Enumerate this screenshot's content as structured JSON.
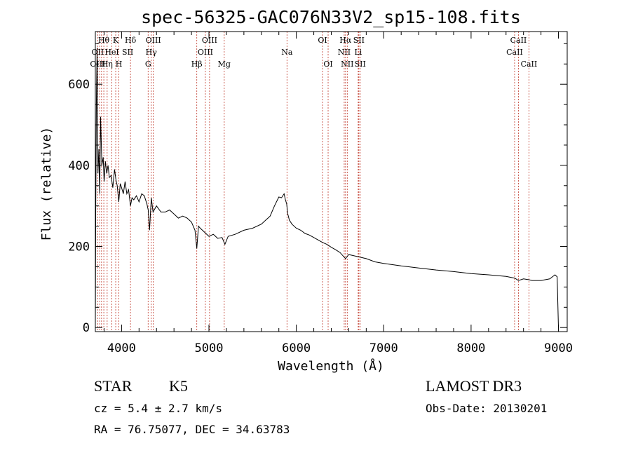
{
  "chart_data": {
    "type": "line",
    "title": "spec-56325-GAC076N33V2_sp15-108.fits",
    "xlabel": "Wavelength (Å)",
    "ylabel": "Flux (relative)",
    "xlim": [
      3700,
      9100
    ],
    "ylim": [
      -10,
      730
    ],
    "x_ticks": [
      4000,
      5000,
      6000,
      7000,
      8000,
      9000
    ],
    "y_ticks": [
      0,
      200,
      400,
      600
    ],
    "series": [
      {
        "name": "flux",
        "x": [
          3700,
          3705,
          3712,
          3720,
          3730,
          3740,
          3750,
          3760,
          3775,
          3790,
          3800,
          3815,
          3830,
          3845,
          3860,
          3880,
          3900,
          3920,
          3935,
          3950,
          3968,
          3985,
          4000,
          4020,
          4040,
          4060,
          4080,
          4102,
          4120,
          4140,
          4170,
          4200,
          4230,
          4260,
          4290,
          4305,
          4320,
          4340,
          4360,
          4400,
          4450,
          4500,
          4550,
          4600,
          4650,
          4700,
          4750,
          4800,
          4840,
          4861,
          4880,
          4900,
          4950,
          5000,
          5050,
          5100,
          5150,
          5183,
          5220,
          5300,
          5400,
          5500,
          5600,
          5700,
          5750,
          5800,
          5830,
          5860,
          5875,
          5890,
          5900,
          5920,
          5950,
          6000,
          6050,
          6100,
          6150,
          6200,
          6250,
          6300,
          6350,
          6400,
          6450,
          6500,
          6563,
          6600,
          6700,
          6800,
          6900,
          7000,
          7200,
          7400,
          7600,
          7800,
          8000,
          8200,
          8400,
          8500,
          8542,
          8600,
          8662,
          8700,
          8800,
          8900,
          8960,
          8985,
          9000
        ],
        "y": [
          10,
          300,
          560,
          690,
          380,
          440,
          330,
          520,
          400,
          420,
          360,
          410,
          380,
          400,
          370,
          375,
          345,
          390,
          365,
          350,
          310,
          355,
          345,
          330,
          360,
          330,
          340,
          300,
          320,
          315,
          325,
          310,
          330,
          325,
          305,
          290,
          240,
          320,
          285,
          300,
          285,
          285,
          290,
          280,
          270,
          275,
          270,
          260,
          240,
          195,
          250,
          245,
          235,
          225,
          230,
          220,
          222,
          205,
          225,
          230,
          240,
          245,
          255,
          275,
          300,
          322,
          320,
          330,
          315,
          305,
          282,
          265,
          255,
          245,
          240,
          232,
          228,
          222,
          216,
          210,
          205,
          198,
          192,
          185,
          170,
          180,
          175,
          170,
          162,
          158,
          152,
          147,
          142,
          138,
          133,
          130,
          126,
          122,
          116,
          120,
          118,
          116,
          116,
          120,
          130,
          125,
          0
        ],
        "color": "#000000"
      }
    ],
    "line_groups": [
      {
        "ids": [
          3727,
          3750,
          3771,
          3797,
          3835,
          3889,
          3933,
          3969,
          4102,
          4304,
          4340,
          4363,
          4861,
          4959,
          5007,
          5175,
          5893,
          6300,
          6364,
          6548,
          6563,
          6583,
          6708,
          6716,
          6731,
          8498,
          8542,
          8662
        ]
      }
    ],
    "line_labels": [
      {
        "text": "Hθ",
        "x": 3797,
        "row": 1
      },
      {
        "text": "K",
        "x": 3933,
        "row": 1
      },
      {
        "text": "Hδ",
        "x": 4102,
        "row": 1
      },
      {
        "text": "OIII",
        "x": 4363,
        "row": 1
      },
      {
        "text": "OIII",
        "x": 5007,
        "row": 1
      },
      {
        "text": "OI",
        "x": 6300,
        "row": 1
      },
      {
        "text": "Hα",
        "x": 6563,
        "row": 1
      },
      {
        "text": "SII",
        "x": 6716,
        "row": 1
      },
      {
        "text": "CaII",
        "x": 8542,
        "row": 1
      },
      {
        "text": "OII",
        "x": 3727,
        "row": 2
      },
      {
        "text": "HeI",
        "x": 3889,
        "row": 2
      },
      {
        "text": "SII",
        "x": 4070,
        "row": 2
      },
      {
        "text": "Hγ",
        "x": 4340,
        "row": 2
      },
      {
        "text": "OIII",
        "x": 4959,
        "row": 2
      },
      {
        "text": "Na",
        "x": 5893,
        "row": 2
      },
      {
        "text": "NII",
        "x": 6548,
        "row": 2
      },
      {
        "text": "Li",
        "x": 6708,
        "row": 2
      },
      {
        "text": "CaII",
        "x": 8498,
        "row": 2
      },
      {
        "text": "OIII",
        "x": 3727,
        "row": 3
      },
      {
        "text": "Hη",
        "x": 3835,
        "row": 3
      },
      {
        "text": "H",
        "x": 3969,
        "row": 3
      },
      {
        "text": "G",
        "x": 4304,
        "row": 3
      },
      {
        "text": "Hβ",
        "x": 4861,
        "row": 3
      },
      {
        "text": "Mg",
        "x": 5175,
        "row": 3
      },
      {
        "text": "OI",
        "x": 6364,
        "row": 3
      },
      {
        "text": "NII",
        "x": 6583,
        "row": 3
      },
      {
        "text": "SII",
        "x": 6731,
        "row": 3
      },
      {
        "text": "CaII",
        "x": 8662,
        "row": 3
      }
    ],
    "line_marker_color": "#c0392b"
  },
  "footer": {
    "object_class": "STAR",
    "subclass": "K5",
    "survey": "LAMOST DR3",
    "redshift": "cz = 5.4 ± 2.7 km/s",
    "obs_date": "Obs-Date: 20130201",
    "coords": "RA =  76.75077, DEC =  34.63783"
  }
}
